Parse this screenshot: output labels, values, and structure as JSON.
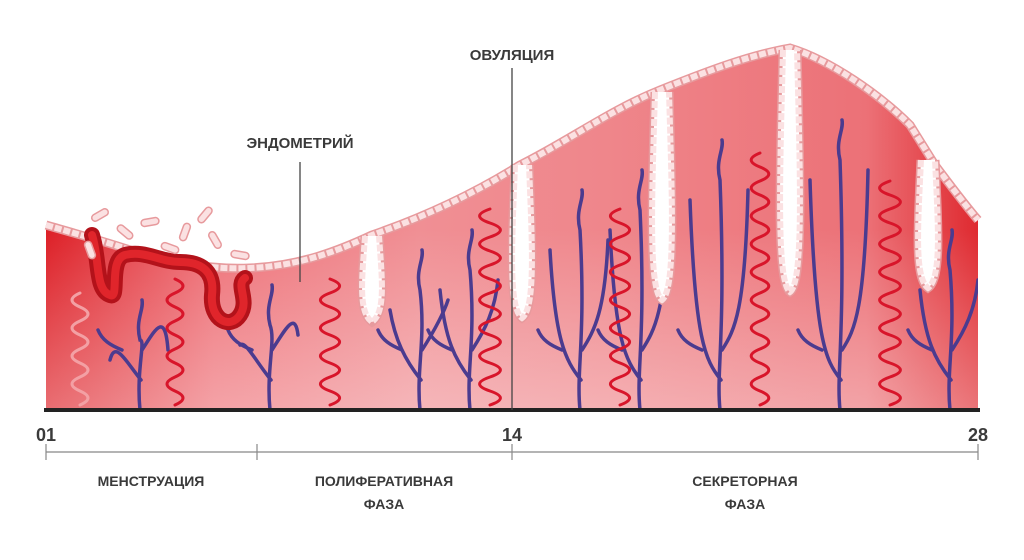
{
  "labels": {
    "ovulation": "ОВУЛЯЦИЯ",
    "endometrium": "ЭНДОМЕТРИЙ"
  },
  "days": [
    "01",
    "14",
    "28"
  ],
  "phases": [
    {
      "lines": [
        "МЕНСТРУАЦИЯ"
      ]
    },
    {
      "lines": [
        "ПОЛИФЕРАТИВНАЯ",
        "ФАЗА"
      ]
    },
    {
      "lines": [
        "СЕКРЕТОРНАЯ",
        "ФАЗА"
      ]
    }
  ]
}
